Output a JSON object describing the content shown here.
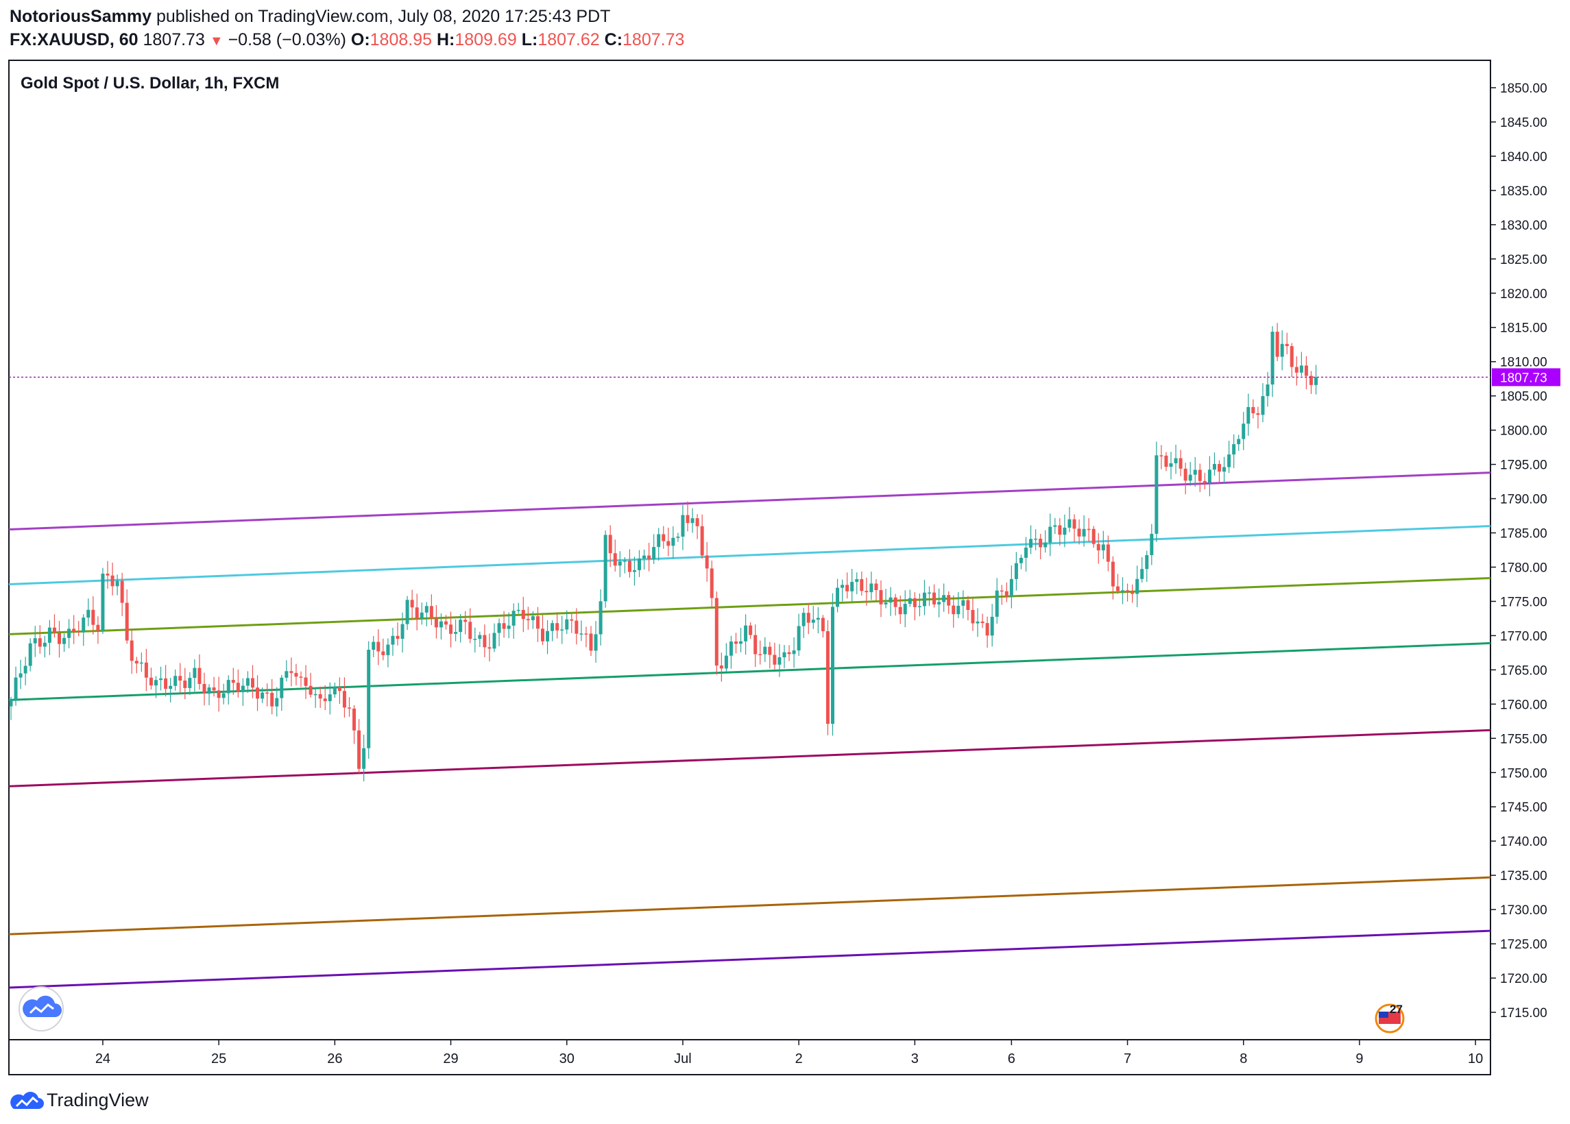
{
  "header": {
    "author": "NotoriousSammy",
    "published_text": "published on TradingView.com, July 08, 2020 17:25:43 PDT",
    "symbol": "FX:XAUUSD, 60",
    "last": "1807.73",
    "change": "−0.58 (−0.03%)",
    "o_label": "O:",
    "o_value": "1808.95",
    "h_label": "H:",
    "h_value": "1809.69",
    "l_label": "L:",
    "l_value": "1807.62",
    "c_label": "C:",
    "c_value": "1807.73"
  },
  "footer": {
    "brand": "TradingView"
  },
  "colors": {
    "up": "#26a69a",
    "down": "#ef5350",
    "price_line": "#9c27b0",
    "price_tag": "#aa00ff"
  },
  "chart_data": {
    "type": "candlestick",
    "title": "Gold Spot / U.S. Dollar, 1h, FXCM",
    "ylim": [
      1711,
      1854
    ],
    "y_ticks": [
      "1850.00",
      "1845.00",
      "1840.00",
      "1835.00",
      "1830.00",
      "1825.00",
      "1820.00",
      "1815.00",
      "1810.00",
      "1805.00",
      "1800.00",
      "1795.00",
      "1790.00",
      "1785.00",
      "1780.00",
      "1775.00",
      "1770.00",
      "1765.00",
      "1760.00",
      "1755.00",
      "1750.00",
      "1745.00",
      "1740.00",
      "1735.00",
      "1730.00",
      "1725.00",
      "1720.00",
      "1715.00"
    ],
    "x_ticks": [
      {
        "label": "24",
        "bar": 19
      },
      {
        "label": "25",
        "bar": 43
      },
      {
        "label": "26",
        "bar": 67
      },
      {
        "label": "29",
        "bar": 91
      },
      {
        "label": "30",
        "bar": 115
      },
      {
        "label": "Jul",
        "bar": 139
      },
      {
        "label": "2",
        "bar": 163
      },
      {
        "label": "3",
        "bar": 187
      },
      {
        "label": "6",
        "bar": 207
      },
      {
        "label": "7",
        "bar": 231
      },
      {
        "label": "8",
        "bar": 255
      },
      {
        "label": "9",
        "bar": 279
      },
      {
        "label": "10",
        "bar": 303
      }
    ],
    "last_price": "1807.73",
    "close_path": [
      [
        0,
        1760
      ],
      [
        4,
        1768
      ],
      [
        8,
        1771
      ],
      [
        12,
        1770
      ],
      [
        16,
        1772
      ],
      [
        18,
        1771
      ],
      [
        19,
        1778
      ],
      [
        22,
        1779
      ],
      [
        24,
        1770
      ],
      [
        26,
        1766
      ],
      [
        30,
        1762
      ],
      [
        34,
        1763
      ],
      [
        38,
        1765
      ],
      [
        42,
        1761
      ],
      [
        46,
        1762
      ],
      [
        50,
        1763
      ],
      [
        54,
        1761
      ],
      [
        58,
        1765
      ],
      [
        60,
        1762
      ],
      [
        62,
        1762
      ],
      [
        64,
        1760
      ],
      [
        66,
        1763
      ],
      [
        68,
        1762
      ],
      [
        70,
        1760
      ],
      [
        72,
        1750
      ],
      [
        73,
        1754
      ],
      [
        74,
        1767
      ],
      [
        78,
        1768
      ],
      [
        80,
        1771
      ],
      [
        82,
        1775
      ],
      [
        86,
        1773
      ],
      [
        90,
        1770
      ],
      [
        94,
        1772
      ],
      [
        98,
        1769
      ],
      [
        102,
        1771
      ],
      [
        106,
        1773
      ],
      [
        110,
        1771
      ],
      [
        114,
        1772
      ],
      [
        118,
        1770
      ],
      [
        120,
        1767
      ],
      [
        122,
        1775
      ],
      [
        123,
        1784
      ],
      [
        126,
        1781
      ],
      [
        130,
        1780
      ],
      [
        134,
        1783
      ],
      [
        136,
        1784
      ],
      [
        138,
        1784
      ],
      [
        139,
        1789
      ],
      [
        142,
        1786
      ],
      [
        144,
        1780
      ],
      [
        145,
        1774
      ],
      [
        146,
        1765
      ],
      [
        148,
        1766
      ],
      [
        150,
        1769
      ],
      [
        152,
        1771
      ],
      [
        154,
        1769
      ],
      [
        158,
        1767
      ],
      [
        160,
        1766
      ],
      [
        162,
        1768
      ],
      [
        164,
        1772
      ],
      [
        166,
        1773
      ],
      [
        168,
        1771
      ],
      [
        169,
        1759
      ],
      [
        170,
        1775
      ],
      [
        172,
        1778
      ],
      [
        174,
        1777
      ],
      [
        178,
        1776
      ],
      [
        182,
        1775
      ],
      [
        186,
        1775
      ],
      [
        190,
        1775
      ],
      [
        194,
        1774
      ],
      [
        198,
        1775
      ],
      [
        200,
        1772
      ],
      [
        202,
        1771
      ],
      [
        204,
        1775
      ],
      [
        206,
        1776
      ],
      [
        208,
        1779
      ],
      [
        210,
        1784
      ],
      [
        212,
        1784
      ],
      [
        214,
        1785
      ],
      [
        216,
        1786
      ],
      [
        220,
        1785
      ],
      [
        224,
        1784
      ],
      [
        226,
        1783
      ],
      [
        228,
        1779
      ],
      [
        230,
        1776
      ],
      [
        232,
        1777
      ],
      [
        234,
        1778
      ],
      [
        236,
        1785
      ],
      [
        237,
        1795
      ],
      [
        240,
        1796
      ],
      [
        242,
        1795
      ],
      [
        244,
        1794
      ],
      [
        246,
        1793
      ],
      [
        248,
        1793
      ],
      [
        250,
        1794
      ],
      [
        252,
        1795
      ],
      [
        254,
        1800
      ],
      [
        256,
        1803
      ],
      [
        258,
        1804
      ],
      [
        260,
        1806
      ],
      [
        261,
        1815
      ],
      [
        262,
        1811
      ],
      [
        264,
        1811
      ],
      [
        266,
        1808
      ],
      [
        268,
        1808
      ],
      [
        270,
        1808
      ]
    ],
    "lines": [
      {
        "color": "#a33fc4",
        "y0": 1785.5,
        "y1": 1793.8
      },
      {
        "color": "#4dc9e0",
        "y0": 1777.5,
        "y1": 1786.0
      },
      {
        "color": "#6e9e12",
        "y0": 1770.2,
        "y1": 1778.4
      },
      {
        "color": "#159e6a",
        "y0": 1760.6,
        "y1": 1768.9
      },
      {
        "color": "#9c0a5f",
        "y0": 1748.0,
        "y1": 1756.2
      },
      {
        "color": "#a86408",
        "y0": 1726.4,
        "y1": 1734.7
      },
      {
        "color": "#6a0eb0",
        "y0": 1718.6,
        "y1": 1726.9
      }
    ]
  }
}
